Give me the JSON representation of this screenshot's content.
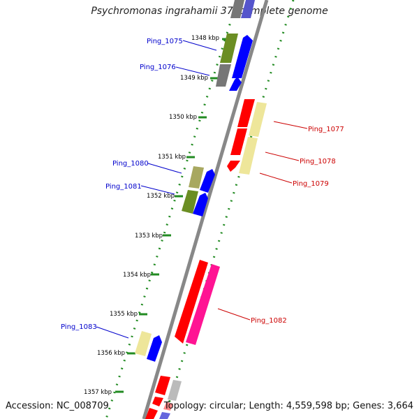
{
  "title": "Psychromonas ingrahamii 37, complete genome",
  "accession_text": "Accession: NC_008709",
  "topology_text": "Topology: circular; Length: 4,559,598 bp; Genes: 3,664",
  "kbp_labels": [
    "1348 kbp",
    "1349 kbp",
    "1350 kbp",
    "1351 kbp",
    "1352 kbp",
    "1353 kbp",
    "1354 kbp",
    "1355 kbp",
    "1356 kbp",
    "1357 kbp"
  ],
  "genes": [
    {
      "label": "Ping_1075",
      "strand": "-"
    },
    {
      "label": "Ping_1076",
      "strand": "-"
    },
    {
      "label": "Ping_1077",
      "strand": "+"
    },
    {
      "label": "Ping_1078",
      "strand": "+"
    },
    {
      "label": "Ping_1079",
      "strand": "+"
    },
    {
      "label": "Ping_1080",
      "strand": "-"
    },
    {
      "label": "Ping_1081",
      "strand": "-"
    },
    {
      "label": "Ping_1082",
      "strand": "+"
    },
    {
      "label": "Ping_1083",
      "strand": "-"
    }
  ],
  "colors": {
    "minus_label": "#0000cc",
    "plus_label": "#cc0000",
    "backbone": "#888888",
    "tick": "#228b22",
    "red": "#ff0000",
    "blue": "#0000ff",
    "olive": "#6b8e23",
    "khaki": "#eee69a",
    "pink": "#ff1493",
    "gray": "#777777"
  }
}
